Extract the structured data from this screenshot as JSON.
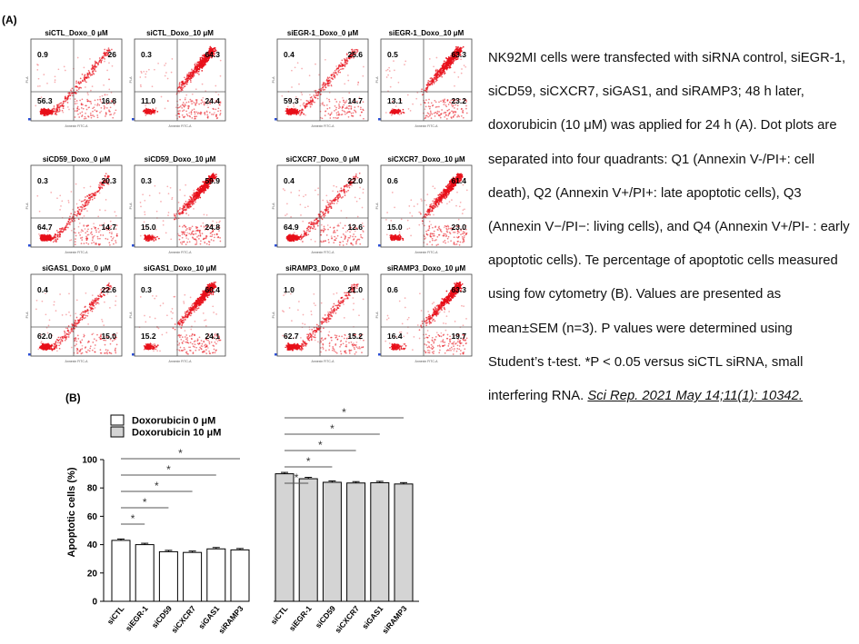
{
  "panel_a": {
    "label": "(A)",
    "plots": [
      {
        "title": "siCTL_Doxo_0 μM",
        "q1": "0.9",
        "q2": "26",
        "q3": "56.3",
        "q4": "16.8",
        "dose": 0
      },
      {
        "title": "siCTL_Doxo_10 μM",
        "q1": "0.3",
        "q2": "64.3",
        "q3": "11.0",
        "q4": "24.4",
        "dose": 10
      },
      {
        "title": "siEGR-1_Doxo_0 μM",
        "q1": "0.4",
        "q2": "25.6",
        "q3": "59.3",
        "q4": "14.7",
        "dose": 0
      },
      {
        "title": "siEGR-1_Doxo_10 μM",
        "q1": "0.5",
        "q2": "63.3",
        "q3": "13.1",
        "q4": "23.2",
        "dose": 10
      },
      {
        "title": "siCD59_Doxo_0 μM",
        "q1": "0.3",
        "q2": "20.3",
        "q3": "64.7",
        "q4": "14.7",
        "dose": 0
      },
      {
        "title": "siCD59_Doxo_10 μM",
        "q1": "0.3",
        "q2": "59.9",
        "q3": "15.0",
        "q4": "24.8",
        "dose": 10
      },
      {
        "title": "siCXCR7_Doxo_0 μM",
        "q1": "0.4",
        "q2": "22.0",
        "q3": "64.9",
        "q4": "12.6",
        "dose": 0
      },
      {
        "title": "siCXCR7_Doxo_10 μM",
        "q1": "0.6",
        "q2": "61.4",
        "q3": "15.0",
        "q4": "23.0",
        "dose": 10
      },
      {
        "title": "siGAS1_Doxo_0 μM",
        "q1": "0.4",
        "q2": "22.6",
        "q3": "62.0",
        "q4": "15.0",
        "dose": 0
      },
      {
        "title": "siGAS1_Doxo_10 μM",
        "q1": "0.3",
        "q2": "60.4",
        "q3": "15.2",
        "q4": "24.1",
        "dose": 10
      },
      {
        "title": "siRAMP3_Doxo_0 μM",
        "q1": "1.0",
        "q2": "21.0",
        "q3": "62.7",
        "q4": "15.2",
        "dose": 0
      },
      {
        "title": "siRAMP3_Doxo_10 μM",
        "q1": "0.6",
        "q2": "63.3",
        "q3": "16.4",
        "q4": "19.7",
        "dose": 10
      }
    ],
    "xlabel": "Annexin FITC-A",
    "ylabel": "PI-A",
    "dot_color": "#e8101a"
  },
  "chart_data": {
    "type": "bar",
    "label": "(B)",
    "ylabel": "Apoptotic cells (%)",
    "ylim": [
      0,
      100
    ],
    "yticks": [
      "0",
      "20",
      "40",
      "60",
      "80",
      "100"
    ],
    "categories": [
      "siCTL",
      "siEGR-1",
      "siCD59",
      "siCXCR7",
      "siGAS1",
      "siRAMP3"
    ],
    "series": [
      {
        "name": "Doxorubicin 0 μM",
        "color": "#ffffff",
        "values": [
          43,
          40,
          35,
          34.5,
          37,
          36.3
        ]
      },
      {
        "name": "Doxorubicin 10 μM",
        "color": "#d4d4d4",
        "values": [
          90,
          86.5,
          84,
          83.5,
          83.7,
          82.8
        ]
      }
    ],
    "significance_marker": "*",
    "legend_position": "top-left"
  },
  "caption": {
    "text": "NK92MI cells were transfected with siRNA control, siEGR-1, siCD59, siCXCR7, siGAS1, and siRAMP3; 48 h later, doxorubicin (10 μM) was applied for 24 h (A). Dot plots are separated into four quadrants: Q1 (Annexin V-/PI+: cell death), Q2 (Annexin V+/PI+: late apoptotic cells), Q3 (Annexin V−/PI−: living cells), and Q4 (Annexin V+/PI- : early apoptotic cells). Te percentage of apoptotic cells measured using fow cytometry (B). Values are presented as mean±SEM (n=3). P values were determined using Student’s t-test. *P < 0.05 versus siCTL siRNA, small interfering RNA. ",
    "citation": "Sci Rep. 2021 May 14;11(1): 10342."
  }
}
